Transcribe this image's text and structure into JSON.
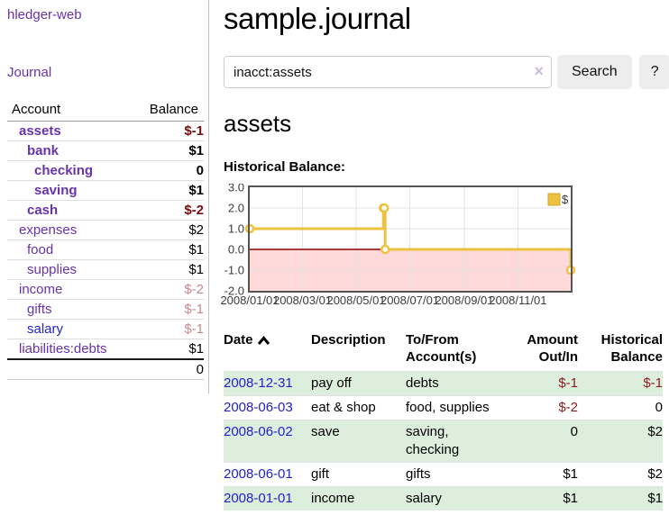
{
  "sidebar": {
    "brand": "hledger-web",
    "journal_link": "Journal",
    "accounts_table": {
      "account_header": "Account",
      "balance_header": "Balance",
      "rows": [
        {
          "name": "assets",
          "balance": "$-1"
        },
        {
          "name": "bank",
          "balance": "$1"
        },
        {
          "name": "checking",
          "balance": "0"
        },
        {
          "name": "saving",
          "balance": "$1"
        },
        {
          "name": "cash",
          "balance": "$-2"
        },
        {
          "name": "expenses",
          "balance": "$2"
        },
        {
          "name": "food",
          "balance": "$1"
        },
        {
          "name": "supplies",
          "balance": "$1"
        },
        {
          "name": "income",
          "balance": "$-2"
        },
        {
          "name": "gifts",
          "balance": "$-1"
        },
        {
          "name": "salary",
          "balance": "$-1"
        },
        {
          "name": "liabilities:debts",
          "balance": "$1"
        }
      ],
      "total": "0"
    }
  },
  "main": {
    "title": "sample.journal",
    "search": {
      "value": "inacct:assets",
      "clear_icon": "×",
      "button_label": "Search",
      "help_label": "?"
    },
    "account_heading": "assets",
    "chart_label": "Historical Balance:"
  },
  "chart_data": {
    "type": "line",
    "step": true,
    "title": "Historical Balance:",
    "series": [
      {
        "name": "$",
        "x": [
          "2008/01/01",
          "2008/06/01",
          "2008/06/02",
          "2008/06/03",
          "2008/12/31"
        ],
        "y": [
          1,
          2,
          2,
          0,
          -1
        ]
      }
    ],
    "x_ticks": [
      "2008/01/01",
      "2008/03/01",
      "2008/05/01",
      "2008/07/01",
      "2008/09/01",
      "2008/11/01"
    ],
    "y_ticks": [
      "3.0",
      "2.0",
      "1.0",
      "0.0",
      "-1.0",
      "-2.0"
    ],
    "xlim": [
      "2008/01/01",
      "2008/12/31"
    ],
    "ylim": [
      -2,
      3
    ],
    "grid": true,
    "legend": {
      "label": "$",
      "position": "top-right"
    },
    "line_color": "#edc240",
    "marker_fill": "#ffffff",
    "negative_region_color": "#fdd9d9",
    "zero_line_color": "#8b0000",
    "border_color": "#545454",
    "grid_color": "#e3e3e3"
  },
  "transactions": {
    "columns": {
      "date": "Date",
      "description": "Description",
      "accounts": [
        "To/From",
        "Account(s)"
      ],
      "amount": [
        "Amount",
        "Out/In"
      ],
      "balance": [
        "Historical",
        "Balance"
      ]
    },
    "rows": [
      {
        "date": "2008-12-31",
        "description": "pay off",
        "accounts": "debts",
        "amount": "$-1",
        "balance": "$-1"
      },
      {
        "date": "2008-06-03",
        "description": "eat & shop",
        "accounts": "food, supplies",
        "amount": "$-2",
        "balance": "0"
      },
      {
        "date": "2008-06-02",
        "description": "save",
        "accounts": [
          "saving,",
          "checking"
        ],
        "amount": "0",
        "balance": "$2"
      },
      {
        "date": "2008-06-01",
        "description": "gift",
        "accounts": "gifts",
        "amount": "$1",
        "balance": "$2"
      },
      {
        "date": "2008-01-01",
        "description": "income",
        "accounts": "salary",
        "amount": "$1",
        "balance": "$1"
      }
    ]
  },
  "colors": {
    "link_purple": "#6633aa",
    "link_blue": "#2222cc",
    "negative_strong": "#7a0e0e",
    "negative_table": "#8b1c1c",
    "negative_soft": "#c9898d",
    "stripe_green": "#ddeedd",
    "button_gray": "#ededed"
  }
}
